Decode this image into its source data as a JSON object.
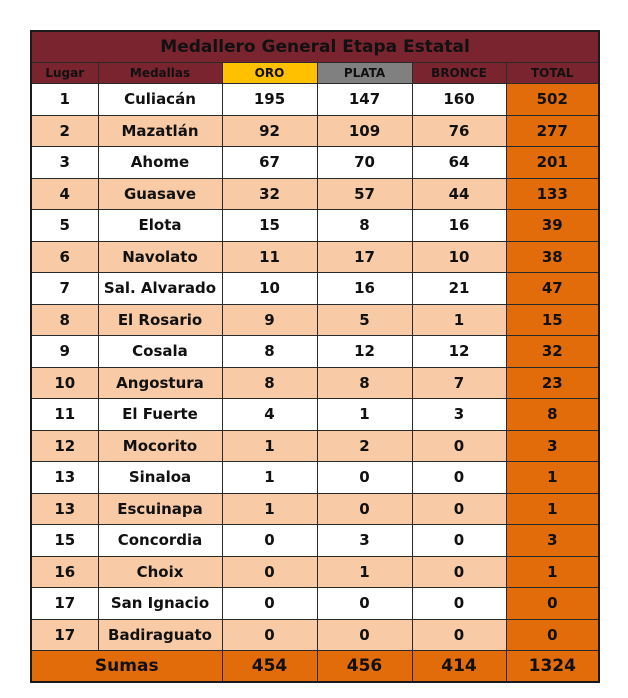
{
  "title": "Medallero General Etapa Estatal",
  "headers": {
    "lugar": "Lugar",
    "medallas": "Medallas",
    "oro": "ORO",
    "plata": "PLATA",
    "bronce": "BRONCE",
    "total": "TOTAL"
  },
  "colors": {
    "title_bg": "#7a2430",
    "oro_header": "#ffc000",
    "plata_header": "#808080",
    "peach_row": "#f8caa6",
    "total_col": "#e26b0a"
  },
  "rows": [
    {
      "lugar": "1",
      "municipio": "Culiacán",
      "oro": "195",
      "plata": "147",
      "bronce": "160",
      "total": "502"
    },
    {
      "lugar": "2",
      "municipio": "Mazatlán",
      "oro": "92",
      "plata": "109",
      "bronce": "76",
      "total": "277"
    },
    {
      "lugar": "3",
      "municipio": "Ahome",
      "oro": "67",
      "plata": "70",
      "bronce": "64",
      "total": "201"
    },
    {
      "lugar": "4",
      "municipio": "Guasave",
      "oro": "32",
      "plata": "57",
      "bronce": "44",
      "total": "133"
    },
    {
      "lugar": "5",
      "municipio": "Elota",
      "oro": "15",
      "plata": "8",
      "bronce": "16",
      "total": "39"
    },
    {
      "lugar": "6",
      "municipio": "Navolato",
      "oro": "11",
      "plata": "17",
      "bronce": "10",
      "total": "38"
    },
    {
      "lugar": "7",
      "municipio": "Sal. Alvarado",
      "oro": "10",
      "plata": "16",
      "bronce": "21",
      "total": "47"
    },
    {
      "lugar": "8",
      "municipio": "El Rosario",
      "oro": "9",
      "plata": "5",
      "bronce": "1",
      "total": "15"
    },
    {
      "lugar": "9",
      "municipio": "Cosala",
      "oro": "8",
      "plata": "12",
      "bronce": "12",
      "total": "32"
    },
    {
      "lugar": "10",
      "municipio": "Angostura",
      "oro": "8",
      "plata": "8",
      "bronce": "7",
      "total": "23"
    },
    {
      "lugar": "11",
      "municipio": "El Fuerte",
      "oro": "4",
      "plata": "1",
      "bronce": "3",
      "total": "8"
    },
    {
      "lugar": "12",
      "municipio": "Mocorito",
      "oro": "1",
      "plata": "2",
      "bronce": "0",
      "total": "3"
    },
    {
      "lugar": "13",
      "municipio": "Sinaloa",
      "oro": "1",
      "plata": "0",
      "bronce": "0",
      "total": "1"
    },
    {
      "lugar": "13",
      "municipio": "Escuinapa",
      "oro": "1",
      "plata": "0",
      "bronce": "0",
      "total": "1"
    },
    {
      "lugar": "15",
      "municipio": "Concordia",
      "oro": "0",
      "plata": "3",
      "bronce": "0",
      "total": "3"
    },
    {
      "lugar": "16",
      "municipio": "Choix",
      "oro": "0",
      "plata": "1",
      "bronce": "0",
      "total": "1"
    },
    {
      "lugar": "17",
      "municipio": "San Ignacio",
      "oro": "0",
      "plata": "0",
      "bronce": "0",
      "total": "0"
    },
    {
      "lugar": "17",
      "municipio": "Badiraguato",
      "oro": "0",
      "plata": "0",
      "bronce": "0",
      "total": "0"
    }
  ],
  "sumas": {
    "label": "Sumas",
    "oro": "454",
    "plata": "456",
    "bronce": "414",
    "total": "1324"
  }
}
